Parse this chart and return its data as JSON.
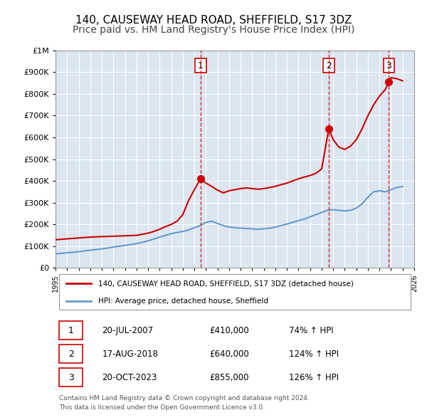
{
  "title": "140, CAUSEWAY HEAD ROAD, SHEFFIELD, S17 3DZ",
  "subtitle": "Price paid vs. HM Land Registry's House Price Index (HPI)",
  "xlabel": "",
  "ylabel": "",
  "ylim": [
    0,
    1000000
  ],
  "xlim": [
    1995,
    2026
  ],
  "yticks": [
    0,
    100000,
    200000,
    300000,
    400000,
    500000,
    600000,
    700000,
    800000,
    900000,
    1000000
  ],
  "ytick_labels": [
    "£0",
    "£100K",
    "£200K",
    "£300K",
    "£400K",
    "£500K",
    "£600K",
    "£700K",
    "£800K",
    "£900K",
    "£1M"
  ],
  "xticks": [
    1995,
    1996,
    1997,
    1998,
    1999,
    2000,
    2001,
    2002,
    2003,
    2004,
    2005,
    2006,
    2007,
    2008,
    2009,
    2010,
    2011,
    2012,
    2013,
    2014,
    2015,
    2016,
    2017,
    2018,
    2019,
    2020,
    2021,
    2022,
    2023,
    2024,
    2025,
    2026
  ],
  "property_color": "#cc0000",
  "hpi_color": "#6699cc",
  "background_color": "#dce6f1",
  "plot_bg_color": "#dce6f1",
  "vline_color": "#cc0000",
  "marker_color": "#cc0000",
  "transactions": [
    {
      "num": 1,
      "date": "20-JUL-2007",
      "year": 2007.54,
      "price": 410000,
      "pct": "74%",
      "dir": "↑"
    },
    {
      "num": 2,
      "date": "17-AUG-2018",
      "year": 2018.62,
      "price": 640000,
      "pct": "124%",
      "dir": "↑"
    },
    {
      "num": 3,
      "date": "20-OCT-2023",
      "year": 2023.8,
      "price": 855000,
      "pct": "126%",
      "dir": "↑"
    }
  ],
  "legend_label_property": "140, CAUSEWAY HEAD ROAD, SHEFFIELD, S17 3DZ (detached house)",
  "legend_label_hpi": "HPI: Average price, detached house, Sheffield",
  "footer1": "Contains HM Land Registry data © Crown copyright and database right 2024.",
  "footer2": "This data is licensed under the Open Government Licence v3.0.",
  "property_x": [
    1995.0,
    1995.5,
    1996.0,
    1996.5,
    1997.0,
    1997.5,
    1998.0,
    1998.5,
    1999.0,
    1999.5,
    2000.0,
    2000.5,
    2001.0,
    2001.5,
    2002.0,
    2002.5,
    2003.0,
    2003.5,
    2004.0,
    2004.5,
    2005.0,
    2005.5,
    2006.0,
    2006.5,
    2007.0,
    2007.54,
    2008.0,
    2008.5,
    2009.0,
    2009.5,
    2010.0,
    2010.5,
    2011.0,
    2011.5,
    2012.0,
    2012.5,
    2013.0,
    2013.5,
    2014.0,
    2014.5,
    2015.0,
    2015.5,
    2016.0,
    2016.5,
    2017.0,
    2017.5,
    2018.0,
    2018.62,
    2019.0,
    2019.5,
    2020.0,
    2020.5,
    2021.0,
    2021.5,
    2022.0,
    2022.5,
    2023.0,
    2023.5,
    2023.8,
    2024.0,
    2024.5,
    2025.0
  ],
  "property_y": [
    130000,
    132000,
    134000,
    136000,
    138000,
    140000,
    142000,
    143000,
    144000,
    145000,
    146000,
    147000,
    148000,
    149000,
    150000,
    155000,
    160000,
    168000,
    178000,
    190000,
    200000,
    215000,
    245000,
    310000,
    360000,
    410000,
    390000,
    375000,
    358000,
    345000,
    355000,
    360000,
    365000,
    368000,
    365000,
    362000,
    365000,
    370000,
    375000,
    383000,
    390000,
    400000,
    410000,
    418000,
    425000,
    435000,
    455000,
    640000,
    590000,
    555000,
    545000,
    560000,
    590000,
    640000,
    700000,
    750000,
    790000,
    820000,
    855000,
    875000,
    870000,
    860000
  ],
  "hpi_x": [
    1995.0,
    1995.5,
    1996.0,
    1996.5,
    1997.0,
    1997.5,
    1998.0,
    1998.5,
    1999.0,
    1999.5,
    2000.0,
    2000.5,
    2001.0,
    2001.5,
    2002.0,
    2002.5,
    2003.0,
    2003.5,
    2004.0,
    2004.5,
    2005.0,
    2005.5,
    2006.0,
    2006.5,
    2007.0,
    2007.5,
    2008.0,
    2008.5,
    2009.0,
    2009.5,
    2010.0,
    2010.5,
    2011.0,
    2011.5,
    2012.0,
    2012.5,
    2013.0,
    2013.5,
    2014.0,
    2014.5,
    2015.0,
    2015.5,
    2016.0,
    2016.5,
    2017.0,
    2017.5,
    2018.0,
    2018.5,
    2019.0,
    2019.5,
    2020.0,
    2020.5,
    2021.0,
    2021.5,
    2022.0,
    2022.5,
    2023.0,
    2023.5,
    2024.0,
    2024.5,
    2025.0
  ],
  "hpi_y": [
    65000,
    67000,
    70000,
    72000,
    75000,
    78000,
    82000,
    85000,
    88000,
    92000,
    96000,
    100000,
    104000,
    108000,
    112000,
    118000,
    125000,
    133000,
    142000,
    150000,
    158000,
    163000,
    168000,
    175000,
    185000,
    195000,
    210000,
    215000,
    205000,
    195000,
    188000,
    185000,
    183000,
    182000,
    180000,
    178000,
    180000,
    183000,
    188000,
    195000,
    202000,
    210000,
    218000,
    225000,
    235000,
    245000,
    255000,
    265000,
    268000,
    265000,
    262000,
    265000,
    275000,
    295000,
    325000,
    350000,
    355000,
    350000,
    360000,
    370000,
    375000
  ],
  "title_fontsize": 11,
  "subtitle_fontsize": 10
}
